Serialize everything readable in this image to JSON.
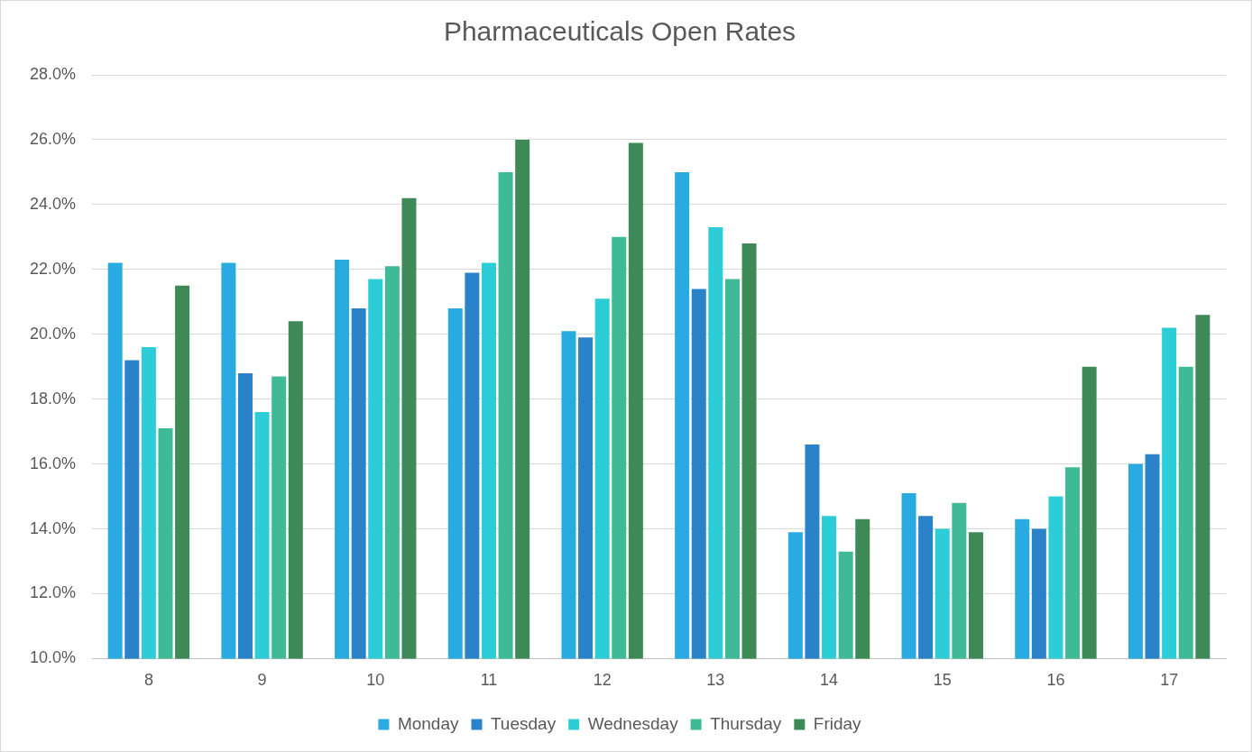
{
  "chart_data": {
    "type": "bar",
    "title": "Pharmaceuticals Open Rates",
    "categories": [
      "8",
      "9",
      "10",
      "11",
      "12",
      "13",
      "14",
      "15",
      "16",
      "17"
    ],
    "series": [
      {
        "name": "Monday",
        "color": "#29abe2",
        "values": [
          22.2,
          22.2,
          22.3,
          20.8,
          20.1,
          25.0,
          13.9,
          15.1,
          14.3,
          16.0
        ]
      },
      {
        "name": "Tuesday",
        "color": "#2a82c9",
        "values": [
          19.2,
          18.8,
          20.8,
          21.9,
          19.9,
          21.4,
          16.6,
          14.4,
          14.0,
          16.3
        ]
      },
      {
        "name": "Wednesday",
        "color": "#2ccdd6",
        "values": [
          19.6,
          17.6,
          21.7,
          22.2,
          21.1,
          23.3,
          14.4,
          14.0,
          15.0,
          20.2
        ]
      },
      {
        "name": "Thursday",
        "color": "#3fba96",
        "values": [
          17.1,
          18.7,
          22.1,
          25.0,
          23.0,
          21.7,
          13.3,
          14.8,
          15.9,
          19.0
        ]
      },
      {
        "name": "Friday",
        "color": "#3e8a56",
        "values": [
          21.5,
          20.4,
          24.2,
          26.0,
          25.9,
          22.8,
          14.3,
          13.9,
          19.0,
          20.6
        ]
      }
    ],
    "ylim": [
      10,
      28
    ],
    "yticks": [
      {
        "value": 10,
        "label": "10.0%"
      },
      {
        "value": 12,
        "label": "12.0%"
      },
      {
        "value": 14,
        "label": "14.0%"
      },
      {
        "value": 16,
        "label": "16.0%"
      },
      {
        "value": 18,
        "label": "18.0%"
      },
      {
        "value": 20,
        "label": "20.0%"
      },
      {
        "value": 22,
        "label": "22.0%"
      },
      {
        "value": 24,
        "label": "24.0%"
      },
      {
        "value": 26,
        "label": "26.0%"
      },
      {
        "value": 28,
        "label": "28.0%"
      }
    ],
    "grid": true,
    "legend": "bottom"
  }
}
